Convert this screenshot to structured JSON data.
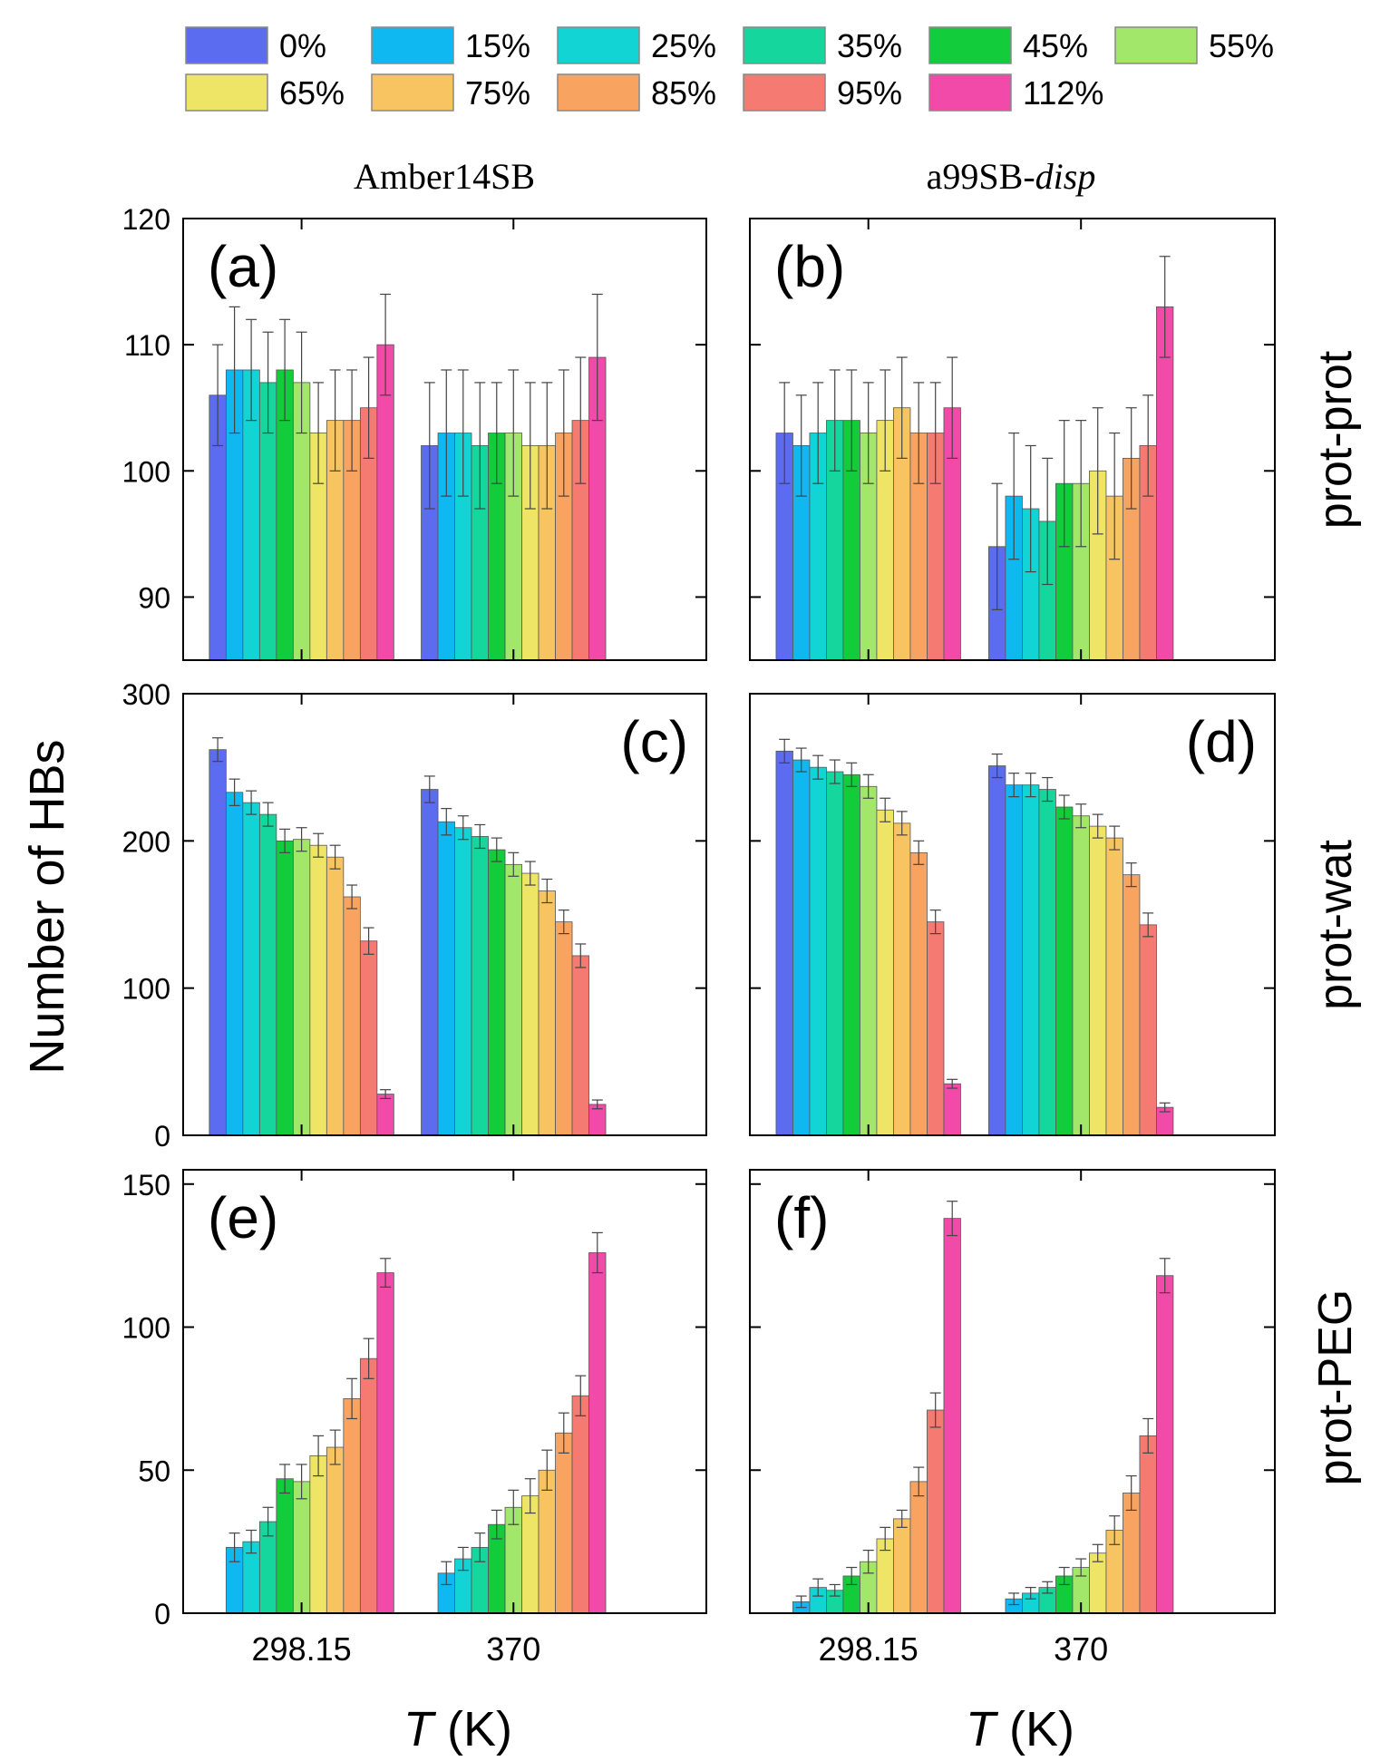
{
  "figure": {
    "y_label": "Number of HBs",
    "x_label_var": "T",
    "x_label_unit": " (K)",
    "column_titles": [
      {
        "main": "Amber14SB",
        "italic": ""
      },
      {
        "main": "a99SB-",
        "italic": "disp"
      }
    ],
    "row_labels": [
      "prot-prot",
      "prot-wat",
      "prot-PEG"
    ],
    "x_categories": [
      "298.15",
      "370"
    ]
  },
  "legend": {
    "entries": [
      {
        "label": "0%",
        "color": "#5b6cf0"
      },
      {
        "label": "15%",
        "color": "#10b8f2"
      },
      {
        "label": "25%",
        "color": "#12d4d4"
      },
      {
        "label": "35%",
        "color": "#15d69c"
      },
      {
        "label": "45%",
        "color": "#12cc3c"
      },
      {
        "label": "55%",
        "color": "#a2e66a"
      },
      {
        "label": "65%",
        "color": "#eee466"
      },
      {
        "label": "75%",
        "color": "#f8c462"
      },
      {
        "label": "85%",
        "color": "#f8a460"
      },
      {
        "label": "95%",
        "color": "#f47a72"
      },
      {
        "label": "112%",
        "color": "#f24aa8"
      }
    ]
  },
  "chart_data": [
    {
      "id": "a",
      "panel_label": "(a)",
      "type": "bar",
      "row": "prot-prot",
      "force_field": "Amber14SB",
      "ylim": [
        85,
        120
      ],
      "yticks": [
        90,
        100,
        110,
        120
      ],
      "show_y_ticklabels": true,
      "categories": [
        "298.15",
        "370"
      ],
      "series_names": [
        "0%",
        "15%",
        "25%",
        "35%",
        "45%",
        "55%",
        "65%",
        "75%",
        "85%",
        "95%",
        "112%"
      ],
      "values": [
        [
          106,
          108,
          108,
          107,
          108,
          107,
          103,
          104,
          104,
          105,
          110
        ],
        [
          102,
          103,
          103,
          102,
          103,
          103,
          102,
          102,
          103,
          104,
          109
        ]
      ],
      "errors": [
        [
          4,
          5,
          4,
          4,
          4,
          4,
          4,
          4,
          4,
          4,
          4
        ],
        [
          5,
          5,
          5,
          5,
          4,
          5,
          5,
          5,
          5,
          5,
          5
        ]
      ]
    },
    {
      "id": "b",
      "panel_label": "(b)",
      "type": "bar",
      "row": "prot-prot",
      "force_field": "a99SB-disp",
      "ylim": [
        85,
        120
      ],
      "yticks": [
        90,
        100,
        110,
        120
      ],
      "show_y_ticklabels": false,
      "categories": [
        "298.15",
        "370"
      ],
      "series_names": [
        "0%",
        "15%",
        "25%",
        "35%",
        "45%",
        "55%",
        "65%",
        "75%",
        "85%",
        "95%",
        "112%"
      ],
      "values": [
        [
          103,
          102,
          103,
          104,
          104,
          103,
          104,
          105,
          103,
          103,
          105
        ],
        [
          94,
          98,
          97,
          96,
          99,
          99,
          100,
          98,
          101,
          102,
          113
        ]
      ],
      "errors": [
        [
          4,
          4,
          4,
          4,
          4,
          4,
          4,
          4,
          4,
          4,
          4
        ],
        [
          5,
          5,
          5,
          5,
          5,
          5,
          5,
          5,
          4,
          4,
          4
        ]
      ]
    },
    {
      "id": "c",
      "panel_label": "(c)",
      "type": "bar",
      "row": "prot-wat",
      "force_field": "Amber14SB",
      "ylim": [
        0,
        300
      ],
      "yticks": [
        0,
        100,
        200,
        300
      ],
      "show_y_ticklabels": true,
      "categories": [
        "298.15",
        "370"
      ],
      "series_names": [
        "0%",
        "15%",
        "25%",
        "35%",
        "45%",
        "55%",
        "65%",
        "75%",
        "85%",
        "95%",
        "112%"
      ],
      "values": [
        [
          262,
          233,
          226,
          218,
          200,
          201,
          197,
          189,
          162,
          132,
          28
        ],
        [
          235,
          213,
          209,
          203,
          194,
          184,
          178,
          166,
          145,
          122,
          21
        ]
      ],
      "errors": [
        [
          8,
          9,
          8,
          8,
          8,
          8,
          8,
          8,
          8,
          9,
          3
        ],
        [
          9,
          9,
          8,
          8,
          8,
          8,
          8,
          8,
          8,
          8,
          3
        ]
      ]
    },
    {
      "id": "d",
      "panel_label": "(d)",
      "type": "bar",
      "row": "prot-wat",
      "force_field": "a99SB-disp",
      "ylim": [
        0,
        300
      ],
      "yticks": [
        0,
        100,
        200,
        300
      ],
      "show_y_ticklabels": false,
      "categories": [
        "298.15",
        "370"
      ],
      "series_names": [
        "0%",
        "15%",
        "25%",
        "35%",
        "45%",
        "55%",
        "65%",
        "75%",
        "85%",
        "95%",
        "112%"
      ],
      "values": [
        [
          261,
          255,
          250,
          247,
          245,
          237,
          221,
          212,
          192,
          145,
          35
        ],
        [
          251,
          238,
          238,
          235,
          223,
          217,
          210,
          202,
          177,
          143,
          19
        ]
      ],
      "errors": [
        [
          8,
          8,
          8,
          8,
          8,
          8,
          8,
          8,
          8,
          8,
          3
        ],
        [
          8,
          8,
          8,
          8,
          8,
          8,
          8,
          8,
          8,
          8,
          3
        ]
      ]
    },
    {
      "id": "e",
      "panel_label": "(e)",
      "type": "bar",
      "row": "prot-PEG",
      "force_field": "Amber14SB",
      "ylim": [
        0,
        155
      ],
      "yticks": [
        0,
        50,
        100,
        150
      ],
      "show_y_ticklabels": true,
      "categories": [
        "298.15",
        "370"
      ],
      "series_names": [
        "0%",
        "15%",
        "25%",
        "35%",
        "45%",
        "55%",
        "65%",
        "75%",
        "85%",
        "95%",
        "112%"
      ],
      "values": [
        [
          0,
          23,
          25,
          32,
          47,
          46,
          55,
          58,
          75,
          89,
          119
        ],
        [
          0,
          14,
          19,
          23,
          31,
          37,
          41,
          50,
          63,
          76,
          126
        ]
      ],
      "errors": [
        [
          0,
          5,
          4,
          5,
          5,
          6,
          7,
          6,
          7,
          7,
          5
        ],
        [
          0,
          4,
          4,
          5,
          5,
          6,
          6,
          7,
          7,
          7,
          7
        ]
      ]
    },
    {
      "id": "f",
      "panel_label": "(f)",
      "type": "bar",
      "row": "prot-PEG",
      "force_field": "a99SB-disp",
      "ylim": [
        0,
        155
      ],
      "yticks": [
        0,
        50,
        100,
        150
      ],
      "show_y_ticklabels": false,
      "categories": [
        "298.15",
        "370"
      ],
      "series_names": [
        "0%",
        "15%",
        "25%",
        "35%",
        "45%",
        "55%",
        "65%",
        "75%",
        "85%",
        "95%",
        "112%"
      ],
      "values": [
        [
          0,
          4,
          9,
          8,
          13,
          18,
          26,
          33,
          46,
          71,
          138
        ],
        [
          0,
          5,
          7,
          9,
          13,
          16,
          21,
          29,
          42,
          62,
          118
        ]
      ],
      "errors": [
        [
          0,
          2,
          3,
          2,
          3,
          4,
          4,
          3,
          5,
          6,
          6
        ],
        [
          0,
          2,
          2,
          2,
          3,
          3,
          3,
          5,
          6,
          6,
          6
        ]
      ]
    }
  ]
}
